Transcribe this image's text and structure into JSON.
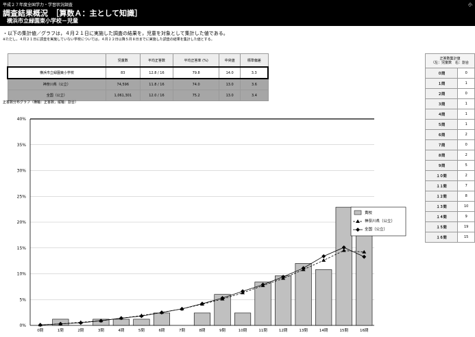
{
  "header": {
    "line1": "平成２７年度全国学力・学習状況調査",
    "title": "調査結果概況　［算数Ａ：主として知識］",
    "school": "横浜市立緑園東小学校－児童",
    "right_text": "小"
  },
  "notes": {
    "line1": "・以下の集計値／グラフは，４月２１日に実施した調査の結果を，児童を対象として集計した値である。",
    "line2": "※ただし，４月２１日に調査を実施していない学校については，４月２２日以降５月８日までに実施した調査の結果を集計した値とする。"
  },
  "summary_table": {
    "headers": [
      "児童数",
      "平均正答数",
      "平均正答率 (%)",
      "中央値",
      "標準偏差"
    ],
    "rows": [
      {
        "label": "横浜市立緑園東小学校",
        "cells": [
          "83",
          "12.8 / 16",
          "79.8",
          "14.0",
          "3.3"
        ]
      },
      {
        "label": "神奈川県（公立）",
        "cells": [
          "74,596",
          "11.8 / 16",
          "74.0",
          "13.0",
          "3.6"
        ]
      },
      {
        "label": "全国（公立）",
        "cells": [
          "1,061,301",
          "12.0 / 16",
          "75.2",
          "13.0",
          "3.4"
        ]
      }
    ]
  },
  "graph_title": "正答数分布グラフ（横軸：正答数，縦軸：割合）",
  "right_table": {
    "header_line1": "正答数集計値",
    "header_line2": "（左：児童数　右：割合",
    "rows": [
      {
        "q": "０問",
        "n": "0"
      },
      {
        "q": "１問",
        "n": "1"
      },
      {
        "q": "２問",
        "n": "0"
      },
      {
        "q": "３問",
        "n": "1"
      },
      {
        "q": "４問",
        "n": "1"
      },
      {
        "q": "５問",
        "n": "1"
      },
      {
        "q": "６問",
        "n": "2"
      },
      {
        "q": "７問",
        "n": "0"
      },
      {
        "q": "８問",
        "n": "2"
      },
      {
        "q": "９問",
        "n": "5"
      },
      {
        "q": "１０問",
        "n": "2"
      },
      {
        "q": "１１問",
        "n": "7"
      },
      {
        "q": "１２問",
        "n": "8"
      },
      {
        "q": "１３問",
        "n": "10"
      },
      {
        "q": "１４問",
        "n": "9"
      },
      {
        "q": "１５問",
        "n": "19"
      },
      {
        "q": "１６問",
        "n": "15"
      }
    ]
  },
  "chart_data": {
    "type": "bar",
    "categories": [
      "0問",
      "1問",
      "2問",
      "3問",
      "4問",
      "5問",
      "6問",
      "7問",
      "8問",
      "9問",
      "10問",
      "11問",
      "12問",
      "13問",
      "14問",
      "15問",
      "16問"
    ],
    "ylim": [
      0,
      40
    ],
    "yticks": [
      "0%",
      "5%",
      "10%",
      "15%",
      "20%",
      "25%",
      "30%",
      "35%",
      "40%"
    ],
    "series": [
      {
        "name": "貴校",
        "kind": "bar",
        "color": "#c0c0c0",
        "values": [
          0.0,
          1.2,
          0.0,
          1.2,
          1.2,
          1.2,
          2.4,
          0.0,
          2.4,
          6.0,
          2.4,
          8.4,
          9.6,
          12.0,
          10.8,
          22.9,
          18.1
        ]
      },
      {
        "name": "神奈川県（公立）",
        "kind": "line",
        "marker": "triangle",
        "values": [
          0.1,
          0.3,
          0.6,
          0.9,
          1.4,
          1.9,
          2.5,
          3.2,
          4.1,
          5.1,
          6.3,
          7.7,
          9.1,
          10.8,
          12.6,
          14.5,
          14.2
        ]
      },
      {
        "name": "全国（公立）",
        "kind": "line",
        "marker": "diamond",
        "values": [
          0.1,
          0.3,
          0.5,
          0.9,
          1.4,
          1.8,
          2.5,
          3.2,
          4.2,
          5.3,
          6.6,
          7.9,
          9.4,
          11.1,
          13.4,
          15.1,
          13.3
        ]
      }
    ]
  }
}
